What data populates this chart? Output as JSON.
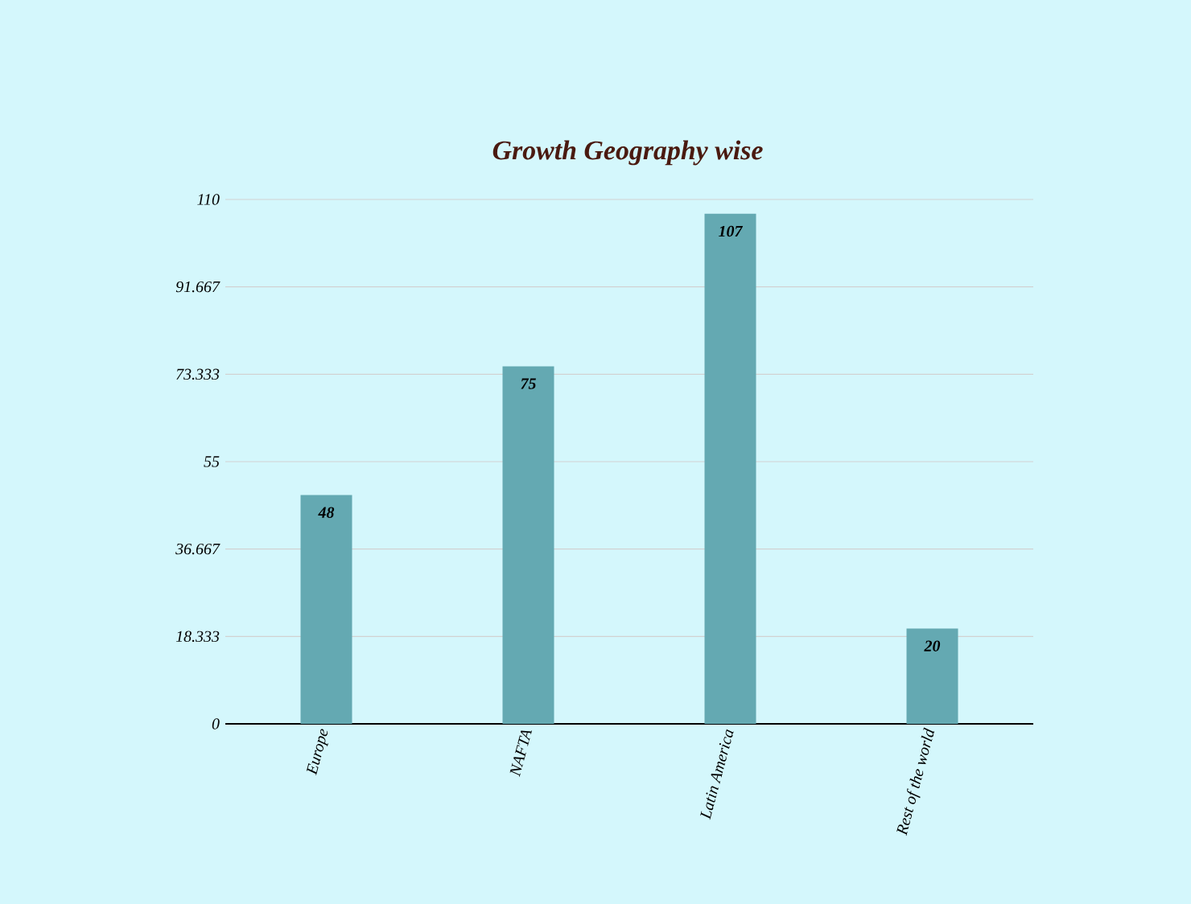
{
  "chart_data": {
    "type": "bar",
    "title": "Growth Geography wise",
    "categories": [
      "Europe",
      "NAFTA",
      "Latin America",
      "Rest of the world"
    ],
    "values": [
      48,
      75,
      107,
      20
    ],
    "color": "#64a9b2",
    "ylim": [
      0,
      110
    ],
    "yticks": [
      0,
      18.333,
      36.667,
      55,
      73.333,
      91.667,
      110
    ],
    "grid": "y",
    "data_labels": true
  }
}
